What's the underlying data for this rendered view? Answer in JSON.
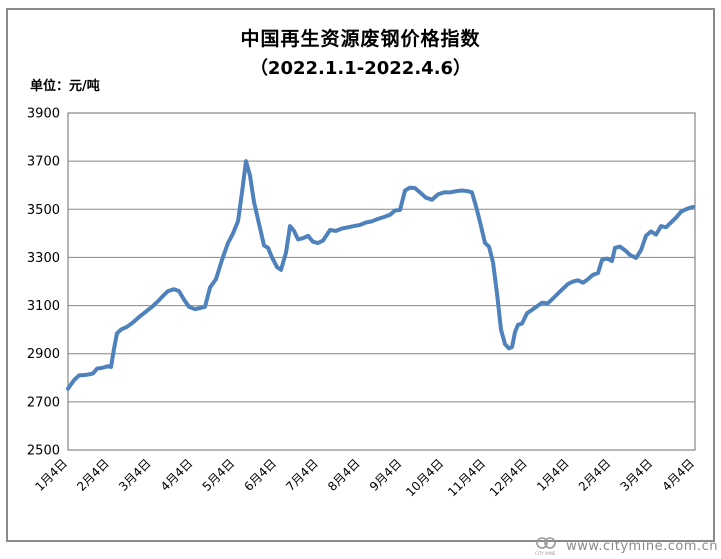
{
  "title": "中国再生资源废钢价格指数",
  "subtitle": "（2022.1.1-2022.4.6）",
  "unit_label": "单位：元/吨",
  "watermark": {
    "logo_text": "CITY MINE",
    "url": "www.citymine.com.cn"
  },
  "colors": {
    "line": "#4F81BD",
    "grid": "#878787",
    "plot_border": "#878787",
    "frame": "#8a8a8a",
    "text": "#000000",
    "watermark": "#8a8a8a"
  },
  "chart_data": {
    "type": "line",
    "title": "中国再生资源废钢价格指数",
    "subtitle": "（2022.1.1-2022.4.6）",
    "ylabel": "元/吨",
    "xlabel": "",
    "ylim": [
      2500,
      3900
    ],
    "y_ticks": [
      3900,
      3700,
      3500,
      3300,
      3100,
      2900,
      2700,
      2500
    ],
    "x_tick_labels": [
      "1月4日",
      "2月4日",
      "3月4日",
      "4月4日",
      "5月4日",
      "6月4日",
      "7月4日",
      "8月4日",
      "9月4日",
      "10月4日",
      "11月4日",
      "12月4日",
      "1月4日",
      "2月4日",
      "3月4日",
      "4月4日"
    ],
    "grid": "horizontal",
    "legend": "none",
    "series": [
      {
        "name": "废钢价格指数",
        "x_unit": "percent_along_axis",
        "points": [
          [
            0.0,
            2755
          ],
          [
            0.96,
            2790
          ],
          [
            1.75,
            2810
          ],
          [
            2.87,
            2812
          ],
          [
            3.99,
            2818
          ],
          [
            4.63,
            2838
          ],
          [
            5.58,
            2842
          ],
          [
            6.38,
            2848
          ],
          [
            6.86,
            2845
          ],
          [
            7.34,
            2920
          ],
          [
            7.81,
            2985
          ],
          [
            8.45,
            3000
          ],
          [
            9.41,
            3012
          ],
          [
            10.37,
            3030
          ],
          [
            11.32,
            3052
          ],
          [
            12.28,
            3072
          ],
          [
            13.4,
            3095
          ],
          [
            14.35,
            3118
          ],
          [
            15.15,
            3140
          ],
          [
            15.95,
            3160
          ],
          [
            16.91,
            3168
          ],
          [
            17.7,
            3160
          ],
          [
            18.5,
            3125
          ],
          [
            19.3,
            3095
          ],
          [
            20.26,
            3085
          ],
          [
            21.05,
            3090
          ],
          [
            21.85,
            3095
          ],
          [
            22.65,
            3175
          ],
          [
            23.6,
            3210
          ],
          [
            24.56,
            3290
          ],
          [
            25.52,
            3360
          ],
          [
            26.32,
            3400
          ],
          [
            27.11,
            3450
          ],
          [
            27.75,
            3570
          ],
          [
            28.39,
            3700
          ],
          [
            29.03,
            3640
          ],
          [
            29.67,
            3530
          ],
          [
            30.46,
            3440
          ],
          [
            31.26,
            3350
          ],
          [
            31.9,
            3340
          ],
          [
            32.54,
            3300
          ],
          [
            33.33,
            3260
          ],
          [
            33.97,
            3248
          ],
          [
            34.77,
            3320
          ],
          [
            35.41,
            3430
          ],
          [
            36.04,
            3410
          ],
          [
            36.68,
            3375
          ],
          [
            37.48,
            3380
          ],
          [
            38.28,
            3390
          ],
          [
            39.07,
            3365
          ],
          [
            39.87,
            3360
          ],
          [
            40.67,
            3370
          ],
          [
            41.79,
            3414
          ],
          [
            42.74,
            3410
          ],
          [
            43.7,
            3420
          ],
          [
            44.66,
            3425
          ],
          [
            45.61,
            3430
          ],
          [
            46.57,
            3435
          ],
          [
            47.53,
            3445
          ],
          [
            48.48,
            3450
          ],
          [
            49.44,
            3460
          ],
          [
            50.4,
            3468
          ],
          [
            51.36,
            3477
          ],
          [
            52.15,
            3495
          ],
          [
            52.95,
            3497
          ],
          [
            53.75,
            3578
          ],
          [
            54.55,
            3590
          ],
          [
            55.34,
            3588
          ],
          [
            56.14,
            3570
          ],
          [
            57.1,
            3548
          ],
          [
            58.05,
            3540
          ],
          [
            59.01,
            3562
          ],
          [
            59.97,
            3570
          ],
          [
            60.93,
            3570
          ],
          [
            61.88,
            3575
          ],
          [
            62.84,
            3578
          ],
          [
            63.8,
            3575
          ],
          [
            64.43,
            3570
          ],
          [
            65.23,
            3497
          ],
          [
            65.87,
            3430
          ],
          [
            66.51,
            3360
          ],
          [
            67.14,
            3345
          ],
          [
            67.78,
            3280
          ],
          [
            68.42,
            3150
          ],
          [
            69.06,
            3000
          ],
          [
            69.7,
            2940
          ],
          [
            70.33,
            2922
          ],
          [
            70.81,
            2928
          ],
          [
            71.29,
            2990
          ],
          [
            71.77,
            3020
          ],
          [
            72.41,
            3025
          ],
          [
            73.21,
            3068
          ],
          [
            74.0,
            3082
          ],
          [
            74.8,
            3097
          ],
          [
            75.6,
            3112
          ],
          [
            76.56,
            3110
          ],
          [
            77.35,
            3130
          ],
          [
            78.15,
            3150
          ],
          [
            78.95,
            3170
          ],
          [
            79.74,
            3190
          ],
          [
            80.54,
            3200
          ],
          [
            81.34,
            3205
          ],
          [
            82.14,
            3195
          ],
          [
            82.93,
            3210
          ],
          [
            83.73,
            3228
          ],
          [
            84.53,
            3235
          ],
          [
            85.17,
            3290
          ],
          [
            85.96,
            3295
          ],
          [
            86.76,
            3285
          ],
          [
            87.24,
            3340
          ],
          [
            88.04,
            3345
          ],
          [
            88.84,
            3330
          ],
          [
            89.63,
            3310
          ],
          [
            90.59,
            3298
          ],
          [
            91.39,
            3330
          ],
          [
            92.19,
            3390
          ],
          [
            92.98,
            3408
          ],
          [
            93.78,
            3395
          ],
          [
            94.58,
            3430
          ],
          [
            95.37,
            3425
          ],
          [
            96.17,
            3445
          ],
          [
            96.97,
            3465
          ],
          [
            97.77,
            3490
          ],
          [
            98.72,
            3502
          ],
          [
            99.68,
            3510
          ]
        ]
      }
    ]
  }
}
